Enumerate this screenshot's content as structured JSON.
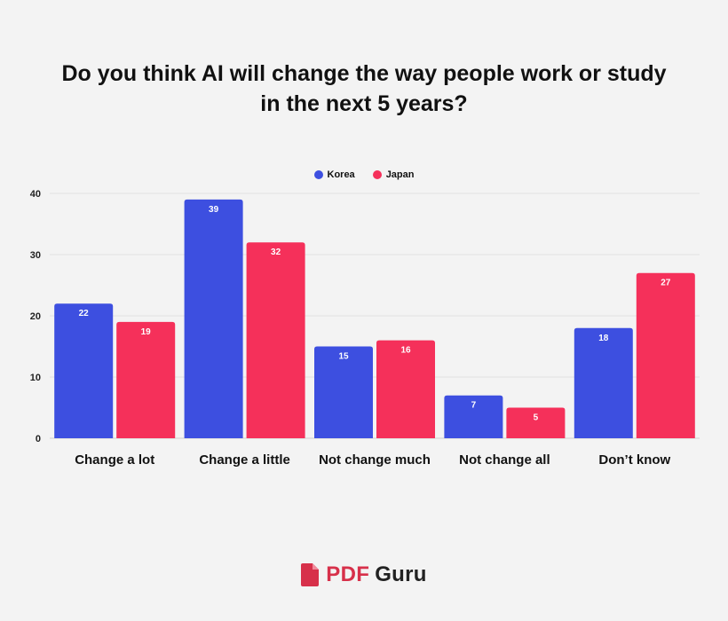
{
  "chart_data": {
    "type": "bar",
    "title_lines": [
      "Do you think AI will change the way people work or study",
      "in the next 5 years?"
    ],
    "categories": [
      "Change a lot",
      "Change a little",
      "Not change much",
      "Not change all",
      "Don’t know"
    ],
    "series": [
      {
        "name": "Korea",
        "color": "#3d4fe0",
        "values": [
          22,
          39,
          15,
          7,
          18
        ]
      },
      {
        "name": "Japan",
        "color": "#f5305a",
        "values": [
          19,
          32,
          16,
          5,
          27
        ]
      }
    ],
    "y_ticks": [
      "0",
      "10",
      "20",
      "30",
      "40"
    ],
    "ylim": [
      0,
      40
    ],
    "xlabel": "",
    "ylabel": "",
    "grid": true,
    "legend_position": "top-center"
  },
  "branding": {
    "pdf": "PDF",
    "guru": "Guru",
    "accent": "#d7304a"
  }
}
